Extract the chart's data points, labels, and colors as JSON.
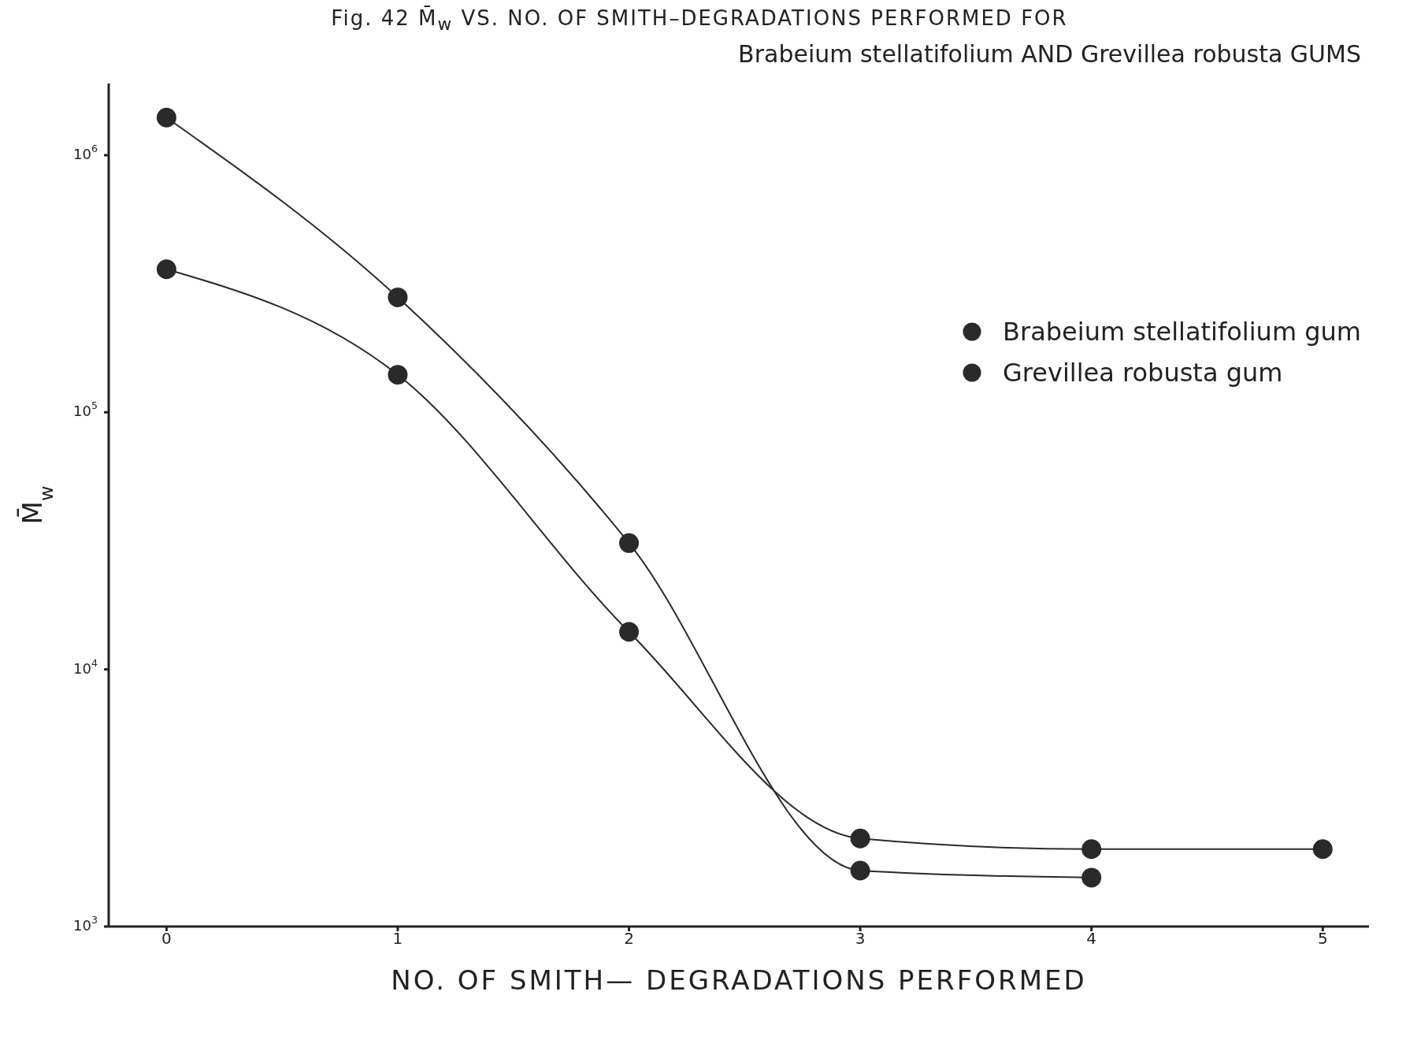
{
  "chart_data": {
    "type": "line",
    "title": "Fig. 42   M̄$_{w}$ VS. NO. OF SMITH–DEGRADATIONS PERFORMED FOR",
    "subtitle": "Brabeium stellatifolium AND Grevillea robusta GUMS",
    "xlabel": "NO. OF SMITH— DEGRADATIONS PERFORMED",
    "ylabel": "M̄$_{w}$",
    "x": [
      0,
      1,
      2,
      3,
      4,
      5
    ],
    "series": [
      {
        "name": "Brabeium stellatifolium gum",
        "color": "#2a2a2a",
        "values": [
          360000,
          140000,
          14000,
          2200,
          2000,
          2000
        ]
      },
      {
        "name": "Grevillea robusta gum",
        "color": "#2a2a2a",
        "values": [
          1400000,
          280000,
          31000,
          1650,
          1550,
          null
        ]
      }
    ],
    "xlim": [
      -0.25,
      5.2
    ],
    "xticks": [
      0,
      1,
      2,
      3,
      4,
      5
    ],
    "ylim": [
      1000,
      1900000
    ],
    "yticks": [
      {
        "value": 1000,
        "label": "10$^{3}$"
      },
      {
        "value": 10000,
        "label": "10$^{4}$"
      },
      {
        "value": 100000,
        "label": "10$^{5}$"
      },
      {
        "value": 1000000,
        "label": "10$^{6}$"
      }
    ],
    "log": "y",
    "grid": false,
    "legend": "top right",
    "marker": "circle",
    "line_style": "solid"
  }
}
